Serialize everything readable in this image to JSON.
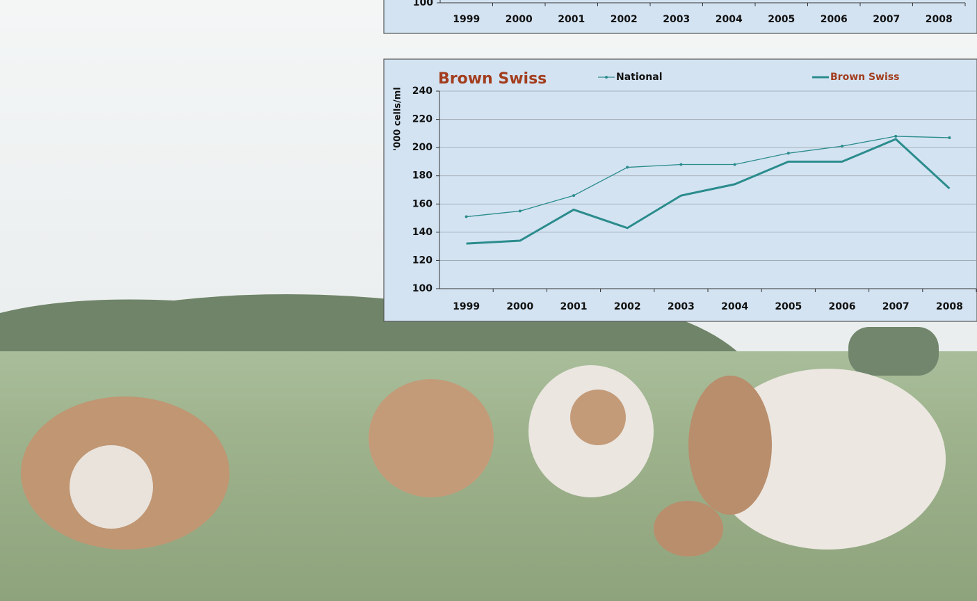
{
  "chart_data": [
    {
      "type": "line",
      "categories": [
        "1999",
        "2000",
        "2001",
        "2002",
        "2003",
        "2004",
        "2005",
        "2006",
        "2007",
        "2008"
      ],
      "ylim": [
        100,
        240
      ],
      "yticks": [
        100
      ],
      "grid": true
    },
    {
      "type": "line",
      "title": "Brown Swiss",
      "y_label": "'000 cells/ml",
      "categories": [
        "1999",
        "2000",
        "2001",
        "2002",
        "2003",
        "2004",
        "2005",
        "2006",
        "2007",
        "2008"
      ],
      "series": [
        {
          "name": "National",
          "color": "#2b8c8c",
          "markers": true,
          "values": [
            151,
            155,
            166,
            186,
            188,
            188,
            196,
            201,
            208,
            207
          ]
        },
        {
          "name": "Brown Swiss",
          "color": "#2b8c8c",
          "markers": false,
          "values": [
            132,
            134,
            156,
            143,
            166,
            174,
            190,
            190,
            206,
            171
          ]
        }
      ],
      "ylim": [
        100,
        240
      ],
      "yticks": [
        100,
        120,
        140,
        160,
        180,
        200,
        220,
        240
      ],
      "grid": true,
      "legend": "top"
    }
  ]
}
